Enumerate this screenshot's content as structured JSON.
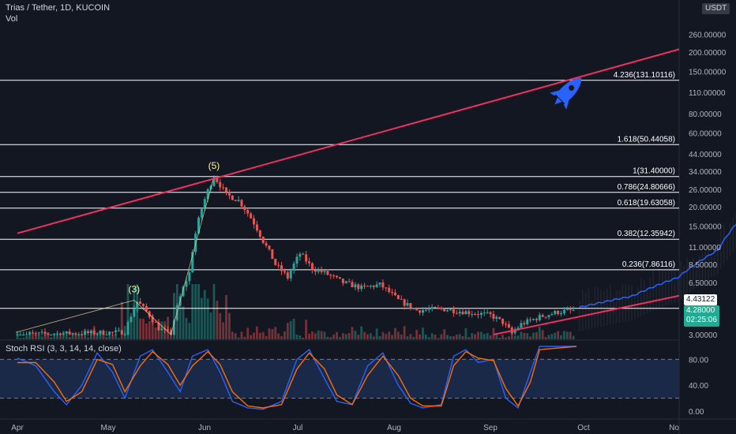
{
  "header": {
    "symbol": "Trias / Tether, 1D, KUCOIN",
    "volume_label": "Vol",
    "rsi_label": "Stoch RSI (3, 3, 14, 14, close)",
    "currency_badge": "USDT",
    "price_tag": "4.43122",
    "last_price": "4.28000",
    "countdown": "02:25:06"
  },
  "colors": {
    "background": "#131722",
    "up_candle": "#26a69a",
    "down_candle": "#ef5350",
    "trendline": "#f0305f",
    "fib_line": "#ffffff",
    "projection": "#2962ff",
    "rsi_k": "#2962ff",
    "rsi_d": "#ff6d00",
    "rsi_band": "#1b2b4b"
  },
  "icons": [
    "rocket-icon"
  ],
  "chart_data": {
    "type": "candlestick",
    "scale": "log",
    "x_ticks": [
      "Apr",
      "May",
      "Jun",
      "Jul",
      "Aug",
      "Sep",
      "Oct",
      "No"
    ],
    "y_ticks": [
      "260.00000",
      "200.00000",
      "150.00000",
      "110.00000",
      "80.00000",
      "60.00000",
      "44.00000",
      "34.00000",
      "26.00000",
      "20.00000",
      "15.00000",
      "11.00000",
      "8.50000",
      "6.50000",
      "4.80000",
      "3.00000"
    ],
    "fib_levels": [
      {
        "label": "4.236(131.10116)",
        "value": 131.10116
      },
      {
        "label": "1.618(50.44058)",
        "value": 50.44058
      },
      {
        "label": "1(31.40000)",
        "value": 31.4
      },
      {
        "label": "0.786(24.80666)",
        "value": 24.80666
      },
      {
        "label": "0.618(19.63058)",
        "value": 19.63058
      },
      {
        "label": "0.382(12.35942)",
        "value": 12.35942
      },
      {
        "label": "0.236(7.86116)",
        "value": 7.86116
      }
    ],
    "price_level_line": 4.43122,
    "wave_labels": [
      {
        "label": "(3)",
        "day": 38,
        "value": 5.1
      },
      {
        "label": "(5)",
        "day": 64,
        "value": 32.0
      }
    ],
    "anchors": [
      {
        "day": 0,
        "value": 3.0
      },
      {
        "day": 35,
        "value": 3.1
      },
      {
        "day": 39,
        "value": 4.9
      },
      {
        "day": 46,
        "value": 3.3
      },
      {
        "day": 50,
        "value": 3.0
      },
      {
        "day": 56,
        "value": 7.5
      },
      {
        "day": 64,
        "value": 31.4
      },
      {
        "day": 68,
        "value": 24
      },
      {
        "day": 72,
        "value": 22
      },
      {
        "day": 76,
        "value": 17
      },
      {
        "day": 80,
        "value": 12
      },
      {
        "day": 84,
        "value": 8.5
      },
      {
        "day": 88,
        "value": 7.0
      },
      {
        "day": 92,
        "value": 10
      },
      {
        "day": 96,
        "value": 8.0
      },
      {
        "day": 100,
        "value": 7.5
      },
      {
        "day": 106,
        "value": 6.5
      },
      {
        "day": 112,
        "value": 6.0
      },
      {
        "day": 118,
        "value": 6.3
      },
      {
        "day": 124,
        "value": 5.0
      },
      {
        "day": 130,
        "value": 4.3
      },
      {
        "day": 138,
        "value": 4.4
      },
      {
        "day": 146,
        "value": 4.2
      },
      {
        "day": 154,
        "value": 4.0
      },
      {
        "day": 158,
        "value": 3.6
      },
      {
        "day": 161,
        "value": 3.05
      },
      {
        "day": 164,
        "value": 3.5
      },
      {
        "day": 170,
        "value": 3.9
      },
      {
        "day": 176,
        "value": 4.2
      },
      {
        "day": 181,
        "value": 4.3
      }
    ],
    "projection": [
      {
        "day": 183,
        "value": 4.5
      },
      {
        "day": 200,
        "value": 5.3
      },
      {
        "day": 215,
        "value": 7.0
      },
      {
        "day": 228,
        "value": 10.5
      },
      {
        "day": 237,
        "value": 18
      },
      {
        "day": 242,
        "value": 28
      },
      {
        "day": 250,
        "value": 40
      },
      {
        "day": 256,
        "value": 52
      },
      {
        "day": 262,
        "value": 68
      }
    ],
    "trendlines": [
      {
        "from": {
          "day": 0,
          "value": 13.5
        },
        "to": {
          "day": 233,
          "value": 260
        }
      },
      {
        "from": {
          "day": 155,
          "value": 3.0
        },
        "to": {
          "day": 320,
          "value": 14.5
        }
      }
    ],
    "stoch_rsi": {
      "y_ticks": [
        "80.00",
        "40.00",
        "0.00"
      ],
      "band": [
        20,
        80
      ],
      "k_anchors": [
        [
          0,
          82
        ],
        [
          6,
          70
        ],
        [
          12,
          30
        ],
        [
          16,
          10
        ],
        [
          21,
          40
        ],
        [
          26,
          90
        ],
        [
          31,
          60
        ],
        [
          35,
          20
        ],
        [
          40,
          85
        ],
        [
          44,
          95
        ],
        [
          49,
          60
        ],
        [
          53,
          30
        ],
        [
          57,
          85
        ],
        [
          62,
          95
        ],
        [
          66,
          60
        ],
        [
          70,
          15
        ],
        [
          75,
          5
        ],
        [
          80,
          3
        ],
        [
          86,
          15
        ],
        [
          91,
          80
        ],
        [
          95,
          95
        ],
        [
          100,
          50
        ],
        [
          104,
          15
        ],
        [
          109,
          10
        ],
        [
          114,
          70
        ],
        [
          119,
          90
        ],
        [
          124,
          40
        ],
        [
          128,
          12
        ],
        [
          132,
          5
        ],
        [
          138,
          10
        ],
        [
          142,
          85
        ],
        [
          146,
          95
        ],
        [
          150,
          75
        ],
        [
          155,
          80
        ],
        [
          159,
          20
        ],
        [
          163,
          5
        ],
        [
          167,
          60
        ],
        [
          170,
          100
        ],
        [
          182,
          100
        ]
      ],
      "d_anchors": [
        [
          0,
          75
        ],
        [
          6,
          75
        ],
        [
          12,
          45
        ],
        [
          16,
          15
        ],
        [
          21,
          30
        ],
        [
          26,
          80
        ],
        [
          31,
          72
        ],
        [
          35,
          30
        ],
        [
          40,
          70
        ],
        [
          44,
          92
        ],
        [
          49,
          72
        ],
        [
          53,
          40
        ],
        [
          57,
          70
        ],
        [
          62,
          92
        ],
        [
          66,
          72
        ],
        [
          70,
          30
        ],
        [
          75,
          8
        ],
        [
          80,
          5
        ],
        [
          86,
          10
        ],
        [
          91,
          65
        ],
        [
          95,
          90
        ],
        [
          100,
          65
        ],
        [
          104,
          25
        ],
        [
          109,
          10
        ],
        [
          114,
          55
        ],
        [
          119,
          85
        ],
        [
          124,
          55
        ],
        [
          128,
          20
        ],
        [
          132,
          8
        ],
        [
          138,
          8
        ],
        [
          142,
          70
        ],
        [
          146,
          92
        ],
        [
          150,
          82
        ],
        [
          155,
          78
        ],
        [
          159,
          35
        ],
        [
          163,
          8
        ],
        [
          167,
          45
        ],
        [
          170,
          95
        ],
        [
          182,
          100
        ]
      ]
    }
  }
}
